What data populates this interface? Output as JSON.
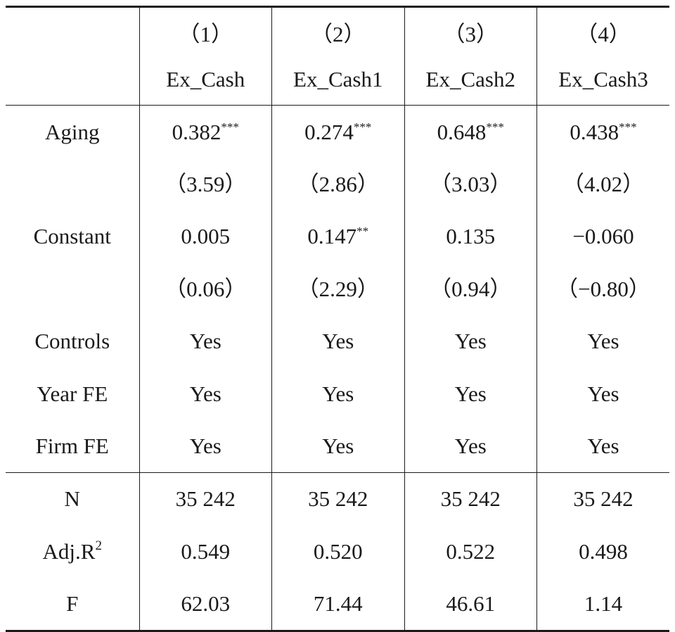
{
  "table": {
    "columns": [
      {
        "number": "（1）",
        "name": "Ex_Cash"
      },
      {
        "number": "（2）",
        "name": "Ex_Cash1"
      },
      {
        "number": "（3）",
        "name": "Ex_Cash2"
      },
      {
        "number": "（4）",
        "name": "Ex_Cash3"
      }
    ],
    "rows": [
      {
        "label": "Aging",
        "cells": [
          {
            "value": "0.382",
            "stars": "***"
          },
          {
            "value": "0.274",
            "stars": "***"
          },
          {
            "value": "0.648",
            "stars": "***"
          },
          {
            "value": "0.438",
            "stars": "***"
          }
        ]
      },
      {
        "label": "",
        "cells": [
          {
            "value": "（3.59）",
            "stars": ""
          },
          {
            "value": "（2.86）",
            "stars": ""
          },
          {
            "value": "（3.03）",
            "stars": ""
          },
          {
            "value": "（4.02）",
            "stars": ""
          }
        ]
      },
      {
        "label": "Constant",
        "cells": [
          {
            "value": "0.005",
            "stars": ""
          },
          {
            "value": "0.147",
            "stars": "**"
          },
          {
            "value": "0.135",
            "stars": ""
          },
          {
            "value": "−0.060",
            "stars": ""
          }
        ]
      },
      {
        "label": "",
        "cells": [
          {
            "value": "（0.06）",
            "stars": ""
          },
          {
            "value": "（2.29）",
            "stars": ""
          },
          {
            "value": "（0.94）",
            "stars": ""
          },
          {
            "value": "（−0.80）",
            "stars": ""
          }
        ]
      },
      {
        "label": "Controls",
        "cells": [
          {
            "value": "Yes",
            "stars": ""
          },
          {
            "value": "Yes",
            "stars": ""
          },
          {
            "value": "Yes",
            "stars": ""
          },
          {
            "value": "Yes",
            "stars": ""
          }
        ]
      },
      {
        "label": "Year FE",
        "cells": [
          {
            "value": "Yes",
            "stars": ""
          },
          {
            "value": "Yes",
            "stars": ""
          },
          {
            "value": "Yes",
            "stars": ""
          },
          {
            "value": "Yes",
            "stars": ""
          }
        ]
      },
      {
        "label": "Firm FE",
        "cells": [
          {
            "value": "Yes",
            "stars": ""
          },
          {
            "value": "Yes",
            "stars": ""
          },
          {
            "value": "Yes",
            "stars": ""
          },
          {
            "value": "Yes",
            "stars": ""
          }
        ]
      }
    ],
    "stats": [
      {
        "label": "N",
        "label_sup": "",
        "cells": [
          "35 242",
          "35 242",
          "35 242",
          "35 242"
        ]
      },
      {
        "label": "Adj.R",
        "label_sup": "2",
        "cells": [
          "0.549",
          "0.520",
          "0.522",
          "0.498"
        ]
      },
      {
        "label": "F",
        "label_sup": "",
        "cells": [
          "62.03",
          "71.44",
          "46.61",
          "1.14"
        ]
      }
    ]
  }
}
